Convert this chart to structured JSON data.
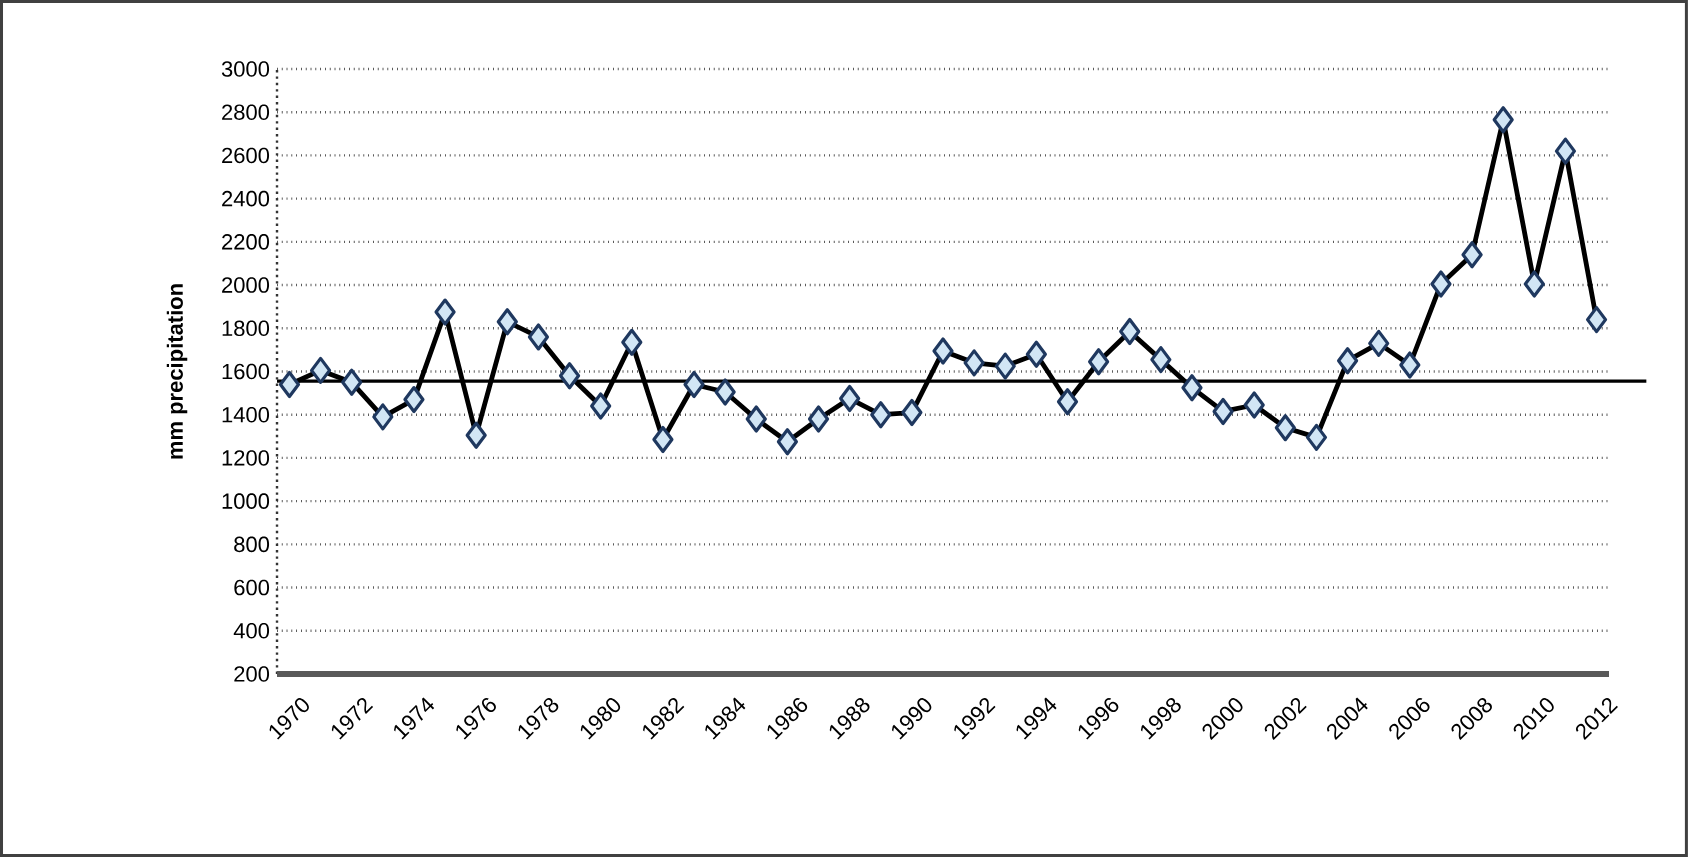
{
  "chart_data": {
    "type": "line",
    "ylabel": "mm precipitation",
    "categories": [
      "1970",
      null,
      "1972",
      null,
      "1974",
      null,
      "1976",
      null,
      "1978",
      null,
      "1980",
      null,
      "1982",
      null,
      "1984",
      null,
      "1986",
      null,
      "1988",
      null,
      "1990",
      null,
      "1992",
      null,
      "1994",
      null,
      "1996",
      null,
      "1998",
      null,
      "2000",
      null,
      "2002",
      null,
      "2004",
      null,
      "2006",
      null,
      "2008",
      null,
      "2010",
      null,
      "2012"
    ],
    "series": [
      {
        "color": "#000000",
        "values": [
          1540,
          1605,
          1550,
          1390,
          1470,
          1875,
          1305,
          1830,
          1760,
          1580,
          1440,
          1735,
          1285,
          1540,
          1505,
          1380,
          1275,
          1380,
          1475,
          1400,
          1410,
          1695,
          1640,
          1625,
          1680,
          1460,
          1645,
          1785,
          1655,
          1525,
          1415,
          1445,
          1340,
          1295,
          1650,
          1730,
          1630,
          2005,
          2140,
          2765,
          2005,
          2620,
          1840
        ]
      }
    ],
    "ylim": [
      200,
      3000
    ],
    "yticks": [
      200,
      400,
      600,
      800,
      1000,
      1200,
      1400,
      1600,
      1800,
      2000,
      2200,
      2400,
      2600,
      2800,
      3000
    ],
    "grid": "y",
    "marker": "diamond",
    "line_style": "solid",
    "ref_lines": [
      {
        "axis": "y",
        "value": 1555,
        "color": "#000000"
      }
    ]
  }
}
